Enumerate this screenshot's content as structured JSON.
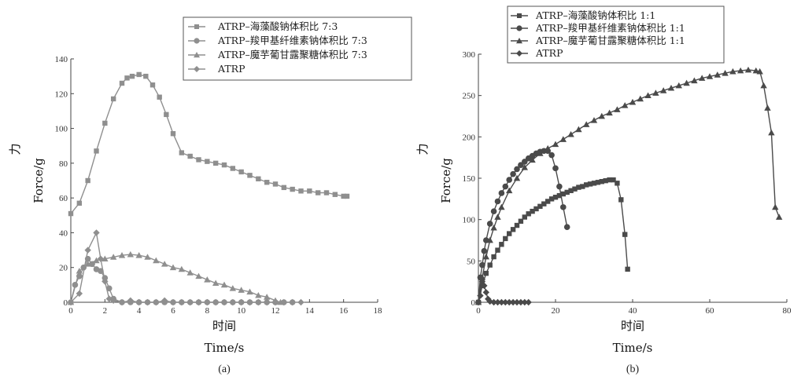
{
  "chart_data": [
    {
      "type": "line",
      "caption": "(a)",
      "xlabel_cn": "时间",
      "xlabel": "Time/s",
      "ylabel_cn": "力",
      "ylabel": "Force/g",
      "xlim": [
        0,
        18
      ],
      "ylim": [
        0,
        140
      ],
      "xticks": [
        0,
        2,
        4,
        6,
        8,
        10,
        12,
        14,
        16,
        18
      ],
      "yticks": [
        0,
        20,
        40,
        60,
        80,
        100,
        120,
        140
      ],
      "legend_position": "top-right",
      "color": "#8f8f8f",
      "series": [
        {
          "name": "ATRP–海藻酸钠体积比 7:3",
          "marker": "square",
          "x": [
            0,
            0.5,
            1,
            1.5,
            2,
            2.5,
            3,
            3.3,
            3.6,
            4,
            4.4,
            4.8,
            5.2,
            5.6,
            6,
            6.5,
            7,
            7.5,
            8,
            8.5,
            9,
            9.5,
            10,
            10.5,
            11,
            11.5,
            12,
            12.5,
            13,
            13.5,
            14,
            14.5,
            15,
            15.5,
            16,
            16.2
          ],
          "y": [
            51,
            57,
            70,
            87,
            103,
            117,
            126,
            129,
            130,
            131,
            130,
            125,
            118,
            108,
            97,
            86,
            84,
            82,
            81,
            80,
            79,
            77,
            75,
            73,
            71,
            69,
            68,
            66,
            65,
            64,
            64,
            63,
            63,
            62,
            61,
            61
          ]
        },
        {
          "name": "ATRP–羧甲基纤维素钠体积比 7:3",
          "marker": "circle",
          "x": [
            0,
            0.25,
            0.5,
            0.75,
            1,
            1.25,
            1.5,
            1.75,
            2,
            2.25,
            2.5,
            3,
            3.5,
            4,
            4.5,
            5,
            5.5,
            6,
            6.5,
            7,
            7.5,
            8,
            8.5,
            9,
            9.5,
            10,
            10.5,
            11,
            11.5,
            12,
            12.5,
            13
          ],
          "y": [
            0,
            10,
            15,
            20,
            25,
            22,
            19,
            18,
            14,
            8,
            2,
            0,
            0,
            0,
            0,
            0,
            0,
            0,
            0,
            0,
            0,
            0,
            0,
            0,
            0,
            0,
            0,
            0,
            0,
            0,
            0,
            0
          ]
        },
        {
          "name": "ATRP–魔芋葡甘露聚糖体积比 7:3",
          "marker": "triangle",
          "x": [
            0,
            0.5,
            1,
            1.5,
            2,
            2.5,
            3,
            3.5,
            4,
            4.5,
            5,
            5.5,
            6,
            6.5,
            7,
            7.5,
            8,
            8.5,
            9,
            9.5,
            10,
            10.5,
            11,
            11.5,
            12,
            12.3
          ],
          "y": [
            0,
            18,
            22,
            24,
            25,
            26,
            27,
            27.5,
            27,
            26,
            24,
            22,
            20,
            19,
            17,
            15,
            13,
            11,
            10,
            8,
            7,
            6,
            4,
            3,
            1,
            0
          ]
        },
        {
          "name": "ATRP",
          "marker": "diamond",
          "x": [
            0,
            0.5,
            1,
            1.5,
            1.75,
            2,
            2.25,
            2.5,
            3,
            3.5,
            4,
            4.5,
            5,
            5.5,
            6,
            6.5,
            7,
            7.5,
            8,
            8.5,
            9,
            9.5,
            10,
            10.5,
            11,
            11.5,
            12,
            12.5,
            13,
            13.5
          ],
          "y": [
            0,
            5,
            30,
            40,
            25,
            12,
            2,
            1,
            0,
            1,
            0,
            0,
            0,
            1,
            0,
            0,
            0,
            0,
            0,
            0,
            0,
            0,
            0,
            0,
            0,
            0,
            0,
            0,
            0,
            0
          ]
        }
      ]
    },
    {
      "type": "line",
      "caption": "(b)",
      "xlabel_cn": "时间",
      "xlabel": "Time/s",
      "ylabel_cn": "力",
      "ylabel": "Force/g",
      "xlim": [
        0,
        80
      ],
      "ylim": [
        0,
        300
      ],
      "xticks": [
        0,
        20,
        40,
        60,
        80
      ],
      "yticks": [
        0,
        50,
        100,
        150,
        200,
        250,
        300
      ],
      "legend_position": "top-left",
      "color": "#4a4a4a",
      "series": [
        {
          "name": "ATRP–海藻酸钠体积比 1:1",
          "marker": "square",
          "x": [
            0,
            1,
            2,
            3,
            4,
            5,
            6,
            7,
            8,
            9,
            10,
            11,
            12,
            13,
            14,
            15,
            16,
            17,
            18,
            19,
            20,
            21,
            22,
            23,
            24,
            25,
            26,
            27,
            28,
            29,
            30,
            31,
            32,
            33,
            34,
            35,
            36,
            37,
            38,
            38.7
          ],
          "y": [
            0,
            20,
            35,
            45,
            55,
            63,
            70,
            77,
            83,
            88,
            93,
            98,
            103,
            107,
            110,
            113,
            116,
            119,
            122,
            125,
            127,
            129,
            131,
            133,
            135,
            137,
            139,
            140,
            142,
            143,
            144,
            145,
            146,
            147,
            148,
            148,
            144,
            124,
            82,
            40
          ]
        },
        {
          "name": "ATRP–羧甲基纤维素钠体积比 1:1",
          "marker": "circle",
          "x": [
            0,
            0.5,
            1,
            1.5,
            2,
            3,
            4,
            5,
            6,
            7,
            8,
            9,
            10,
            11,
            12,
            13,
            14,
            15,
            16,
            17,
            18,
            19,
            20,
            21,
            22,
            23
          ],
          "y": [
            0,
            30,
            45,
            62,
            75,
            95,
            110,
            122,
            132,
            140,
            148,
            155,
            161,
            166,
            170,
            174,
            177,
            180,
            182,
            183,
            183,
            178,
            162,
            140,
            115,
            91
          ]
        },
        {
          "name": "ATRP–魔芋葡甘露聚糖体积比 1:1",
          "marker": "triangle",
          "x": [
            0,
            1,
            2,
            3,
            4,
            5,
            6,
            8,
            10,
            12,
            14,
            16,
            18,
            20,
            22,
            24,
            26,
            28,
            30,
            32,
            34,
            36,
            38,
            40,
            42,
            44,
            46,
            48,
            50,
            52,
            54,
            56,
            58,
            60,
            62,
            64,
            66,
            68,
            70,
            72,
            73,
            74,
            75,
            76,
            77,
            78
          ],
          "y": [
            0,
            30,
            55,
            75,
            90,
            103,
            115,
            135,
            150,
            163,
            172,
            180,
            186,
            191,
            197,
            203,
            209,
            215,
            220,
            225,
            229,
            233,
            238,
            242,
            246,
            250,
            253,
            256,
            259,
            262,
            265,
            268,
            271,
            273,
            275,
            277,
            279,
            280,
            281,
            280,
            279,
            262,
            235,
            205,
            115,
            103
          ]
        },
        {
          "name": "ATRP",
          "marker": "diamond",
          "x": [
            0,
            0.5,
            1,
            1.5,
            2,
            2.5,
            3,
            4,
            5,
            6,
            7,
            8,
            9,
            10,
            11,
            12,
            13
          ],
          "y": [
            0,
            8,
            25,
            20,
            12,
            4,
            1,
            0,
            0,
            0,
            0,
            0,
            0,
            0,
            0,
            0,
            0
          ]
        }
      ]
    }
  ]
}
